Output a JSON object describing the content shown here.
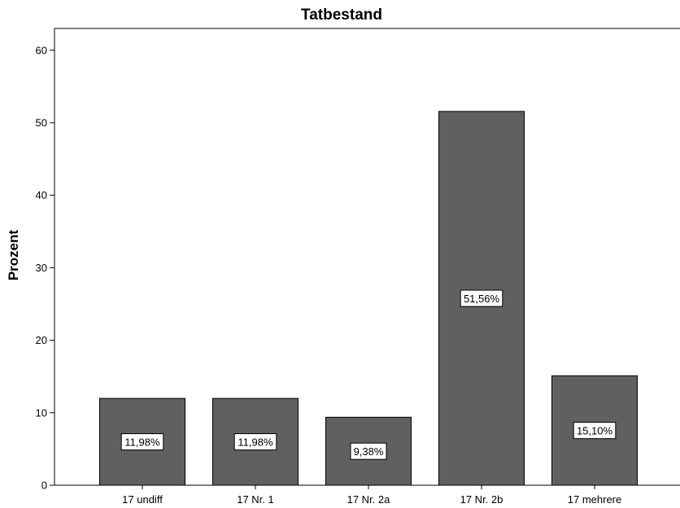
{
  "chart_data": {
    "type": "bar",
    "title": "Tatbestand",
    "xlabel": "",
    "ylabel": "Prozent",
    "categories": [
      "17 undiff",
      "17 Nr. 1",
      "17 Nr. 2a",
      "17 Nr. 2b",
      "17 mehrere"
    ],
    "values": [
      11.98,
      11.98,
      9.38,
      51.56,
      15.1
    ],
    "data_labels": [
      "11,98%",
      "11,98%",
      "9,38%",
      "51,56%",
      "15,10%"
    ],
    "ylim": [
      0,
      63
    ],
    "yticks": [
      0,
      10,
      20,
      30,
      40,
      50,
      60
    ],
    "ytick_labels": [
      "0",
      "10",
      "20",
      "30",
      "40",
      "50",
      "60"
    ],
    "grid": false,
    "legend": "none",
    "colors": {
      "bar_fill": "#606060",
      "bar_stroke": "#000000",
      "axis": "#000000",
      "label_box_fill": "#ffffff"
    }
  }
}
